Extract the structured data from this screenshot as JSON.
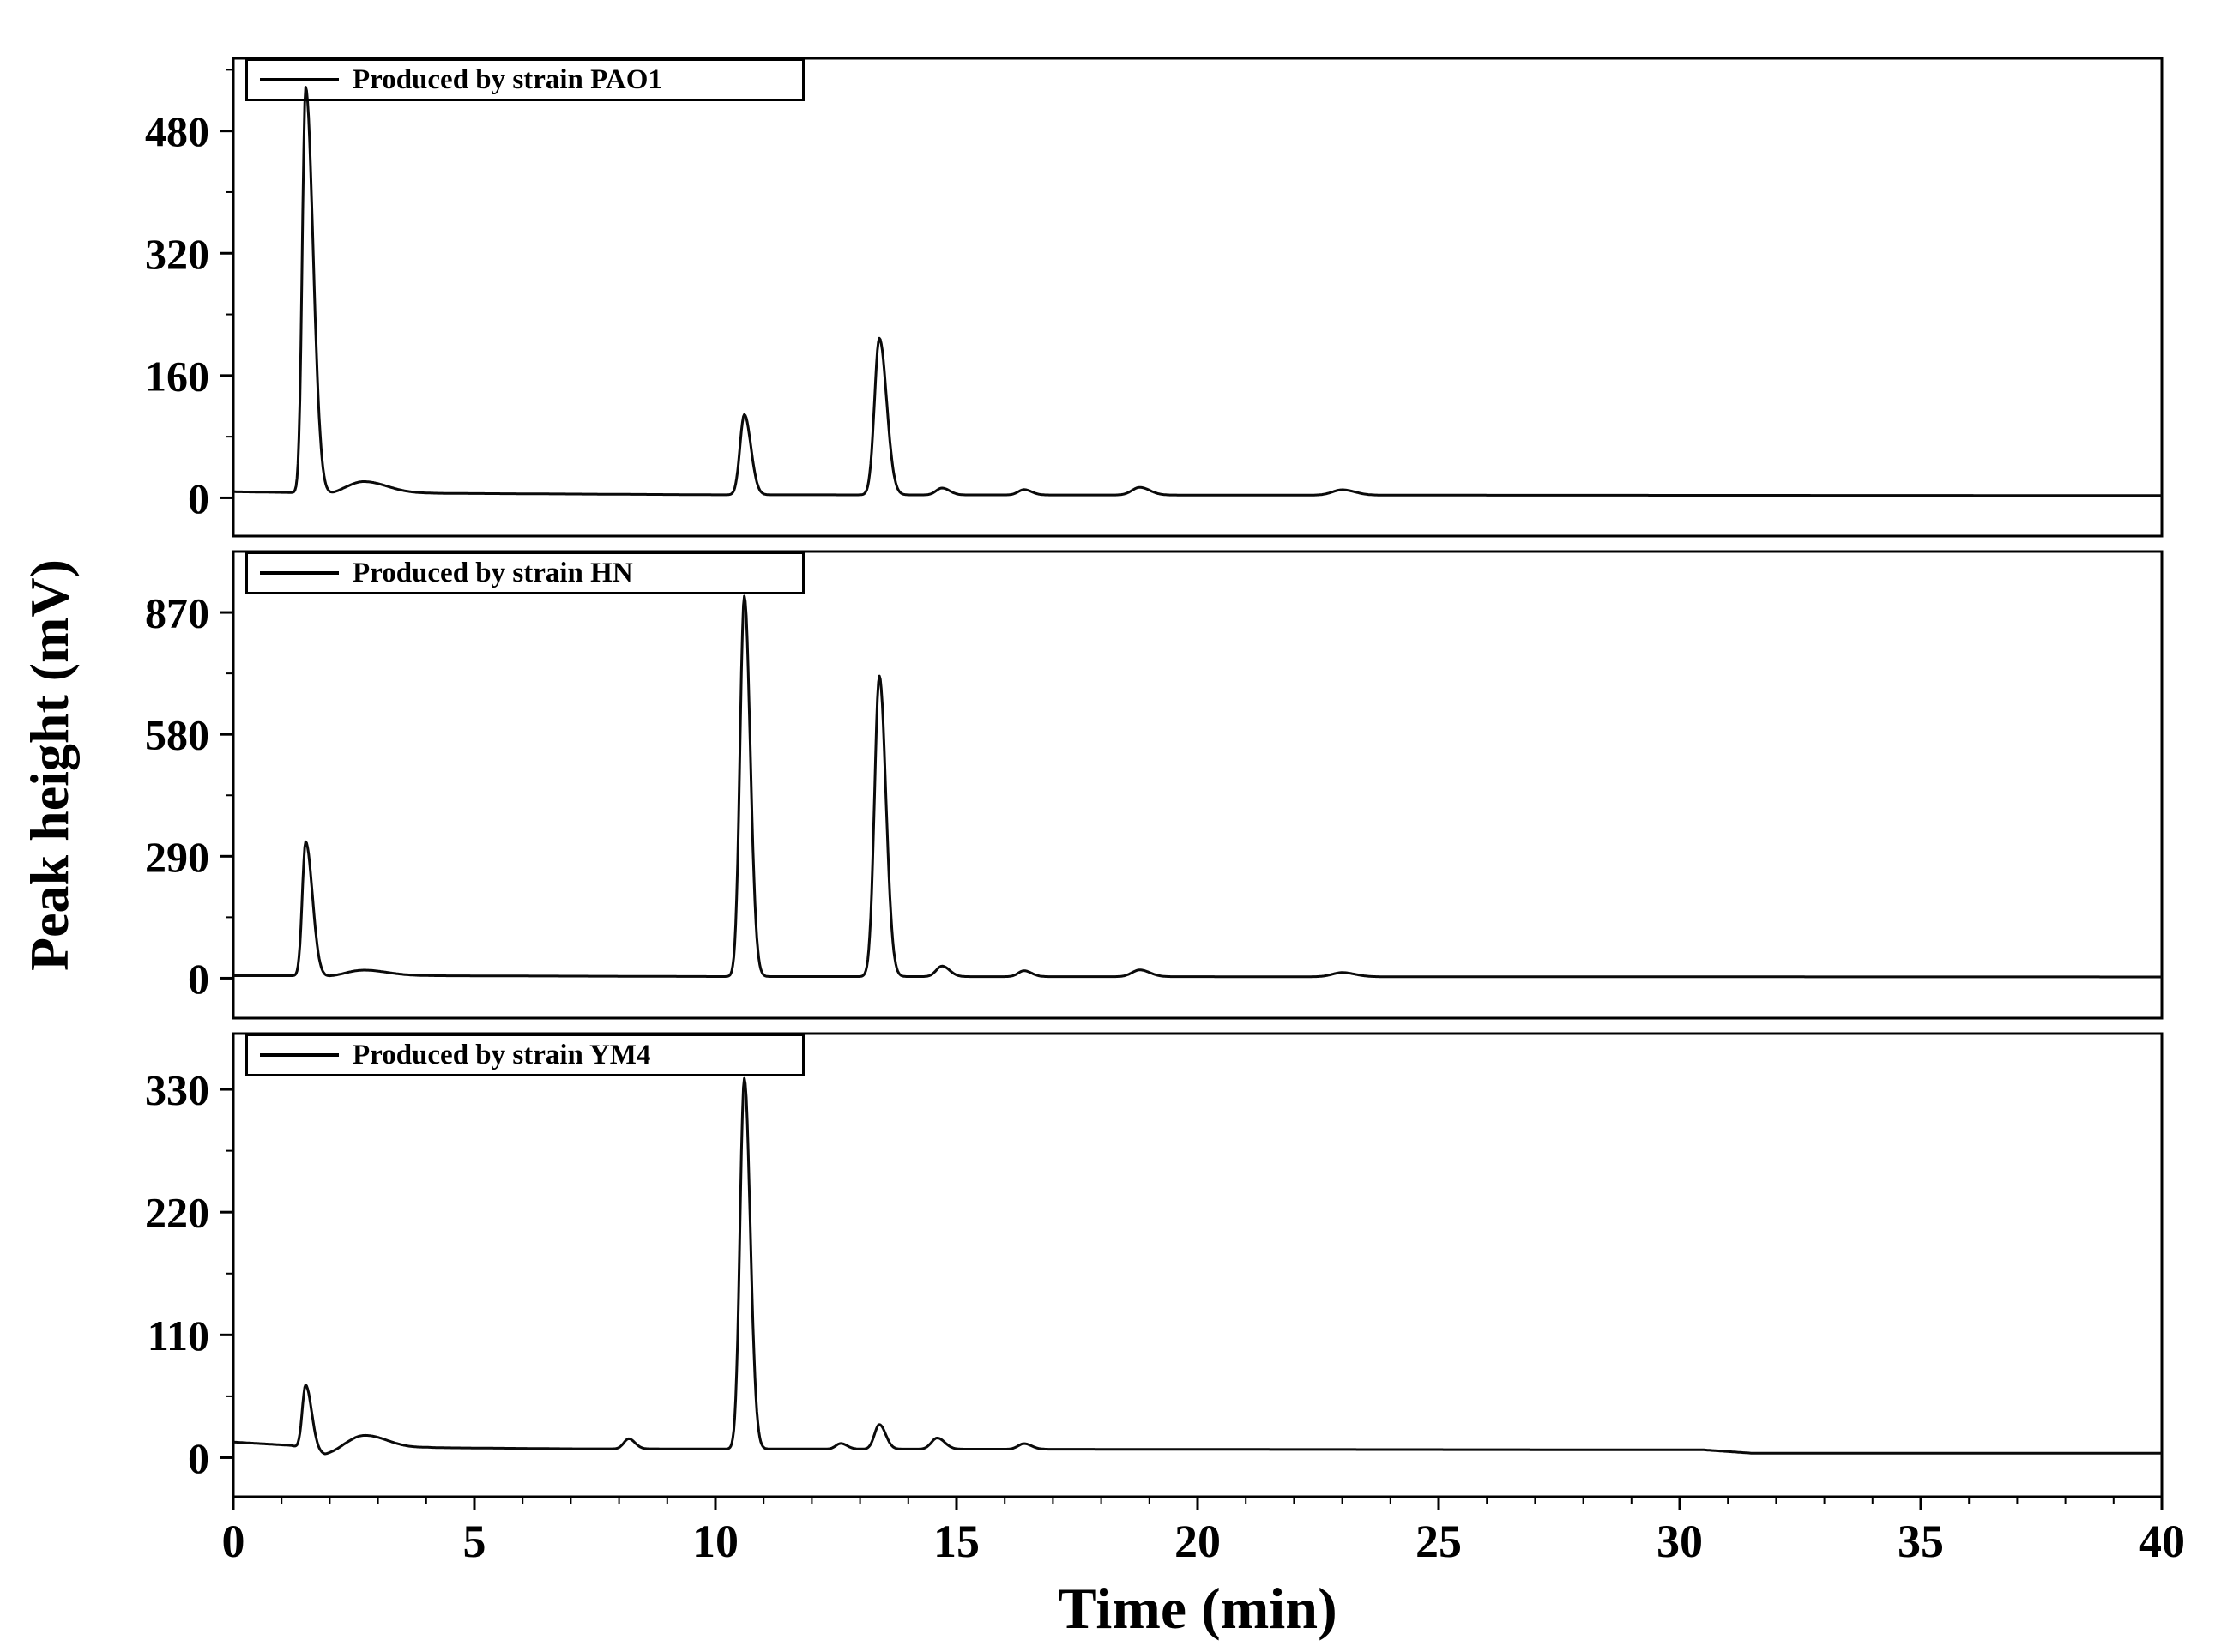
{
  "chart_data": {
    "type": "line",
    "xlabel": "Time (min)",
    "ylabel": "Peak height (mV)",
    "xlim": [
      0,
      40
    ],
    "x_major_ticks": [
      0,
      5,
      10,
      15,
      20,
      25,
      30,
      35,
      40
    ],
    "x_minor_tick_interval": 1,
    "grid": false,
    "line_color": "#0a0a0a",
    "background_color": "#ffffff",
    "panels": [
      {
        "legend": "Produced by strain PAO1",
        "ylim": [
          -50,
          575
        ],
        "y_ticks": [
          0,
          160,
          320,
          480
        ],
        "baseline_mv": [
          [
            0,
            8
          ],
          [
            1.2,
            7
          ],
          [
            1.9,
            3
          ],
          [
            2.3,
            5
          ],
          [
            4,
            6
          ],
          [
            10,
            4
          ],
          [
            40,
            3
          ]
        ],
        "peaks": [
          {
            "time_min": 1.5,
            "height_mv": 532,
            "sigma_min": 0.07,
            "tail": 2.2
          },
          {
            "time_min": 2.7,
            "height_mv": 16,
            "sigma_min": 0.35,
            "tail": 1.4
          },
          {
            "time_min": 10.6,
            "height_mv": 105,
            "sigma_min": 0.09,
            "tail": 1.5
          },
          {
            "time_min": 13.4,
            "height_mv": 205,
            "sigma_min": 0.1,
            "tail": 1.5
          },
          {
            "time_min": 14.7,
            "height_mv": 9,
            "sigma_min": 0.12,
            "tail": 1.3
          },
          {
            "time_min": 16.4,
            "height_mv": 7,
            "sigma_min": 0.12,
            "tail": 1.3
          },
          {
            "time_min": 18.8,
            "height_mv": 10,
            "sigma_min": 0.16,
            "tail": 1.3
          },
          {
            "time_min": 23.0,
            "height_mv": 7,
            "sigma_min": 0.2,
            "tail": 1.3
          }
        ]
      },
      {
        "legend": "Produced by strain HN",
        "ylim": [
          -95,
          1015
        ],
        "y_ticks": [
          0,
          290,
          580,
          870
        ],
        "baseline_mv": [
          [
            0,
            6
          ],
          [
            1.2,
            6
          ],
          [
            1.9,
            3
          ],
          [
            2.4,
            5
          ],
          [
            4,
            6
          ],
          [
            10,
            4
          ],
          [
            40,
            3
          ]
        ],
        "peaks": [
          {
            "time_min": 1.5,
            "height_mv": 320,
            "sigma_min": 0.07,
            "tail": 2.0
          },
          {
            "time_min": 2.7,
            "height_mv": 14,
            "sigma_min": 0.35,
            "tail": 1.4
          },
          {
            "time_min": 10.6,
            "height_mv": 905,
            "sigma_min": 0.09,
            "tail": 1.35
          },
          {
            "time_min": 13.4,
            "height_mv": 715,
            "sigma_min": 0.1,
            "tail": 1.35
          },
          {
            "time_min": 14.7,
            "height_mv": 25,
            "sigma_min": 0.12,
            "tail": 1.3
          },
          {
            "time_min": 16.4,
            "height_mv": 14,
            "sigma_min": 0.12,
            "tail": 1.3
          },
          {
            "time_min": 18.8,
            "height_mv": 16,
            "sigma_min": 0.16,
            "tail": 1.3
          },
          {
            "time_min": 23.0,
            "height_mv": 10,
            "sigma_min": 0.2,
            "tail": 1.3
          }
        ]
      },
      {
        "legend": "Produced by strain YM4",
        "ylim": [
          -35,
          380
        ],
        "y_ticks": [
          0,
          110,
          220,
          330
        ],
        "baseline_mv": [
          [
            0,
            14
          ],
          [
            1.2,
            11
          ],
          [
            1.9,
            2
          ],
          [
            2.3,
            5
          ],
          [
            4,
            9
          ],
          [
            7,
            8
          ],
          [
            30.5,
            7
          ],
          [
            31.5,
            4
          ],
          [
            40,
            4
          ]
        ],
        "peaks": [
          {
            "time_min": 1.5,
            "height_mv": 58,
            "sigma_min": 0.07,
            "tail": 1.8
          },
          {
            "time_min": 2.7,
            "height_mv": 14,
            "sigma_min": 0.35,
            "tail": 1.4
          },
          {
            "time_min": 8.2,
            "height_mv": 9,
            "sigma_min": 0.1,
            "tail": 1.3
          },
          {
            "time_min": 10.6,
            "height_mv": 332,
            "sigma_min": 0.09,
            "tail": 1.35
          },
          {
            "time_min": 12.6,
            "height_mv": 5,
            "sigma_min": 0.1,
            "tail": 1.3
          },
          {
            "time_min": 13.4,
            "height_mv": 22,
            "sigma_min": 0.1,
            "tail": 1.3
          },
          {
            "time_min": 14.6,
            "height_mv": 10,
            "sigma_min": 0.12,
            "tail": 1.3
          },
          {
            "time_min": 16.4,
            "height_mv": 5,
            "sigma_min": 0.12,
            "tail": 1.3
          }
        ]
      }
    ]
  }
}
